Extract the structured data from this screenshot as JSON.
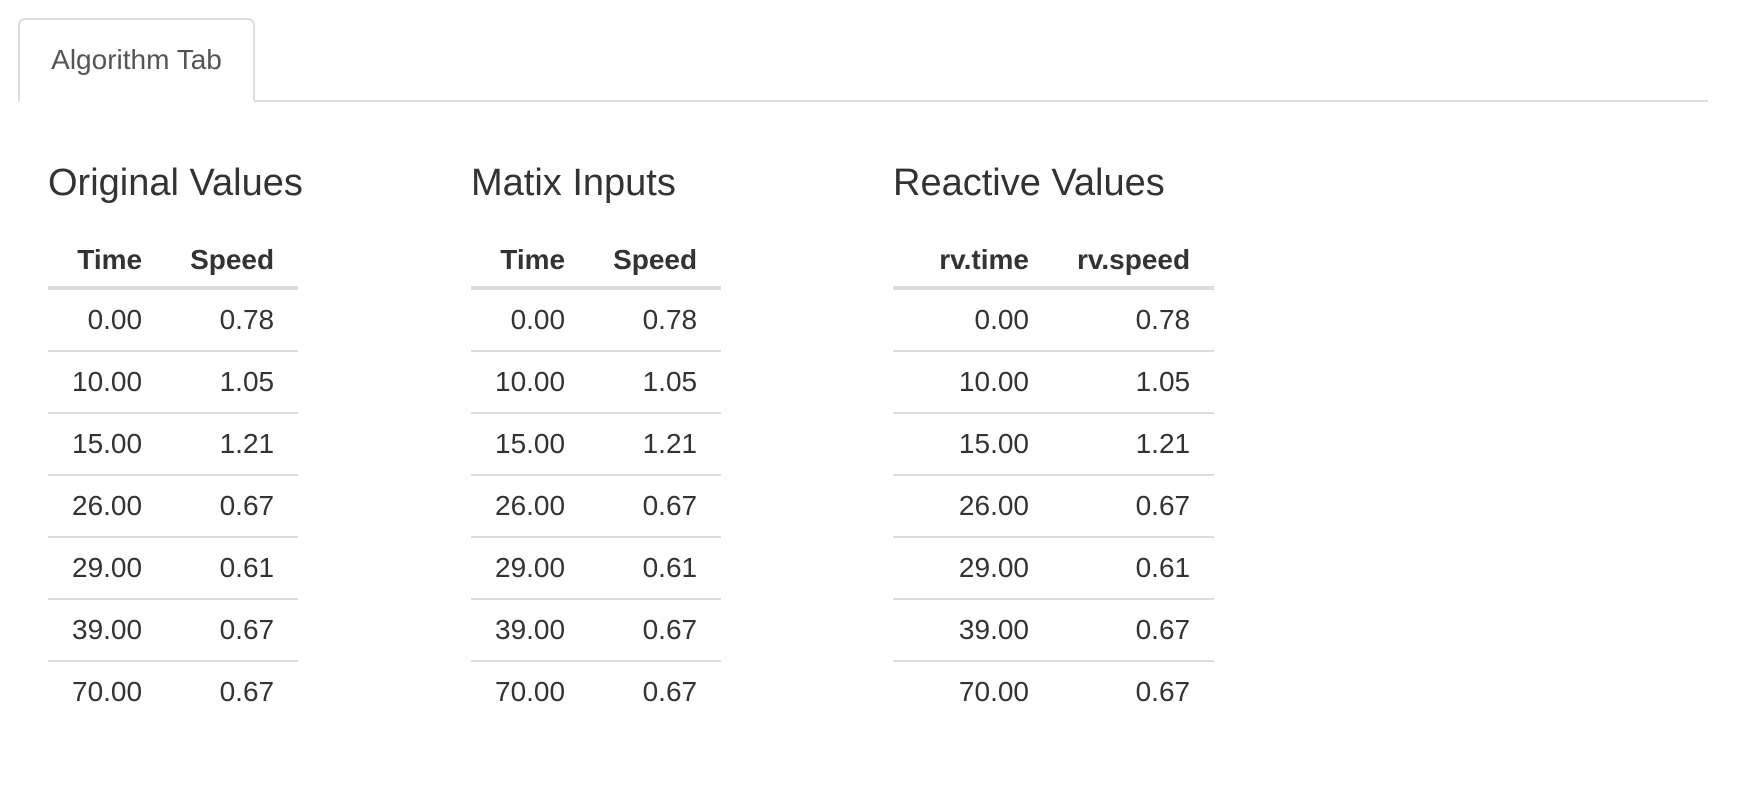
{
  "tabs": [
    {
      "label": "Algorithm Tab",
      "active": true
    }
  ],
  "panels": [
    {
      "title": "Original Values",
      "columns": [
        "Time",
        "Speed"
      ],
      "rows": [
        [
          "0.00",
          "0.78"
        ],
        [
          "10.00",
          "1.05"
        ],
        [
          "15.00",
          "1.21"
        ],
        [
          "26.00",
          "0.67"
        ],
        [
          "29.00",
          "0.61"
        ],
        [
          "39.00",
          "0.67"
        ],
        [
          "70.00",
          "0.67"
        ]
      ]
    },
    {
      "title": "Matix Inputs",
      "columns": [
        "Time",
        "Speed"
      ],
      "rows": [
        [
          "0.00",
          "0.78"
        ],
        [
          "10.00",
          "1.05"
        ],
        [
          "15.00",
          "1.21"
        ],
        [
          "26.00",
          "0.67"
        ],
        [
          "29.00",
          "0.61"
        ],
        [
          "39.00",
          "0.67"
        ],
        [
          "70.00",
          "0.67"
        ]
      ]
    },
    {
      "title": "Reactive Values",
      "columns": [
        "rv.time",
        "rv.speed"
      ],
      "rows": [
        [
          "0.00",
          "0.78"
        ],
        [
          "10.00",
          "1.05"
        ],
        [
          "15.00",
          "1.21"
        ],
        [
          "26.00",
          "0.67"
        ],
        [
          "29.00",
          "0.61"
        ],
        [
          "39.00",
          "0.67"
        ],
        [
          "70.00",
          "0.67"
        ]
      ]
    }
  ],
  "colors": {
    "text": "#333333",
    "tab_text": "#555555",
    "border": "#dddddd",
    "background": "#ffffff"
  }
}
